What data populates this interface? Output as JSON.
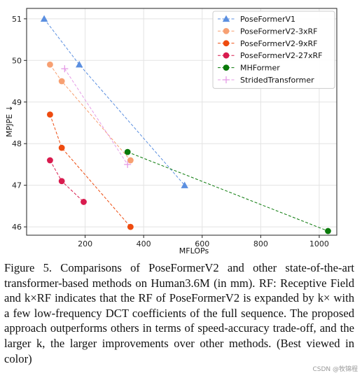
{
  "chart_data": {
    "type": "scatter",
    "xlabel": "MFLOPs",
    "ylabel": "MPJPE ↓",
    "xlim": [
      0,
      1060
    ],
    "ylim": [
      45.8,
      51.25
    ],
    "xticks": [
      200,
      400,
      600,
      800,
      1000
    ],
    "yticks": [
      46,
      47,
      48,
      49,
      50,
      51
    ],
    "grid": true,
    "legend_position": "top-right",
    "series": [
      {
        "name": "PoseFormerV1",
        "color": "#5b8fe0",
        "marker": "triangle",
        "x": [
          60,
          180,
          540
        ],
        "y": [
          51.0,
          49.9,
          47.0
        ]
      },
      {
        "name": "PoseFormerV2-3xRF",
        "color": "#f7a072",
        "marker": "circle",
        "x": [
          80,
          120,
          355
        ],
        "y": [
          49.9,
          49.5,
          47.6
        ]
      },
      {
        "name": "PoseFormerV2-9xRF",
        "color": "#ee4b0f",
        "marker": "circle",
        "x": [
          80,
          120,
          355
        ],
        "y": [
          48.7,
          47.9,
          46.0
        ]
      },
      {
        "name": "PoseFormerV2-27xRF",
        "color": "#d81b4e",
        "marker": "circle",
        "x": [
          80,
          120,
          195
        ],
        "y": [
          47.6,
          47.1,
          46.6
        ]
      },
      {
        "name": "MHFormer",
        "color": "#0a7a0a",
        "marker": "circle",
        "x": [
          345,
          1030
        ],
        "y": [
          47.8,
          45.9
        ]
      },
      {
        "name": "StridedTransformer",
        "color": "#e59be6",
        "marker": "plus",
        "x": [
          130,
          345
        ],
        "y": [
          49.8,
          47.5
        ]
      }
    ]
  },
  "caption": "Figure 5.  Comparisons of PoseFormerV2 and other state-of-the-art transformer-based methods on Human3.6M (in mm). RF: Receptive Field and k×RF indicates that the RF of PoseFormerV2 is expanded by k× with a few low-frequency DCT coefficients of the full sequence. The proposed approach outperforms others in terms of speed-accuracy trade-off, and the larger k, the larger improvements over other methods. (Best viewed in color)",
  "watermark": "CSDN @牧锦程"
}
